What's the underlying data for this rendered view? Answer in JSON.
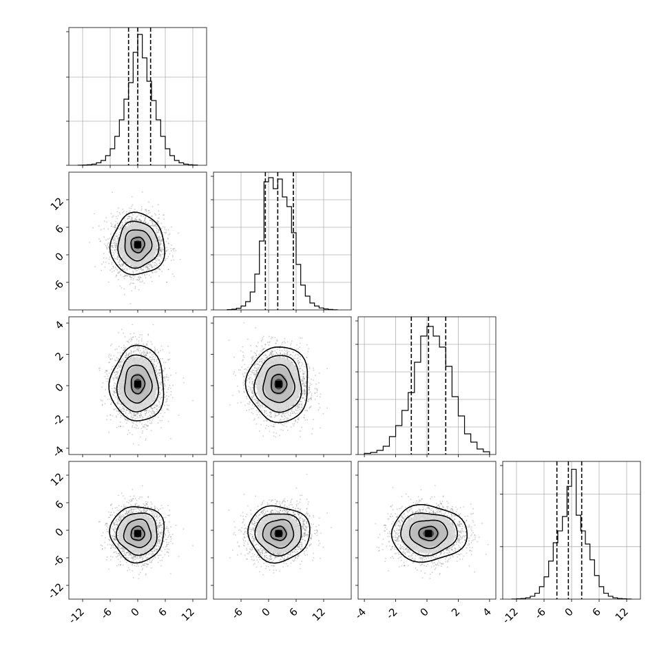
{
  "chart_data": {
    "type": "corner",
    "parameters": [
      {
        "name": "",
        "range": [
          -15,
          15
        ],
        "ticks": [
          -12,
          -6,
          0,
          6,
          12
        ],
        "quantiles": [
          -2.0,
          0.0,
          2.8
        ],
        "hist_bins": [
          -13,
          -12,
          -11,
          -10,
          -9,
          -8,
          -7,
          -6,
          -5,
          -4,
          -3,
          -2,
          -1,
          0,
          1,
          2,
          3,
          4,
          5,
          6,
          7,
          8,
          9,
          10,
          11,
          12,
          13
        ],
        "hist_counts": [
          1,
          2,
          4,
          8,
          18,
          35,
          70,
          120,
          210,
          330,
          480,
          600,
          820,
          950,
          780,
          610,
          470,
          330,
          210,
          120,
          70,
          35,
          18,
          8,
          4,
          2
        ],
        "hist_ymax": 1000,
        "hist_ticks": [
          320,
          640
        ],
        "mean": 0.0,
        "sd": 2.8
      },
      {
        "name": "",
        "range": [
          -12,
          18
        ],
        "ticks": [
          -6,
          0,
          6,
          12
        ],
        "quantiles": [
          -0.7,
          2.0,
          5.4
        ],
        "hist_bins": [
          -9,
          -8,
          -7,
          -6,
          -5,
          -4,
          -3,
          -2,
          -1,
          0,
          1,
          2,
          3,
          4,
          5,
          6,
          7,
          8,
          9,
          10,
          11,
          12,
          13,
          14,
          15
        ],
        "hist_counts": [
          2,
          5,
          12,
          28,
          60,
          130,
          260,
          500,
          930,
          960,
          880,
          950,
          820,
          750,
          560,
          330,
          180,
          100,
          50,
          28,
          14,
          7,
          3,
          1
        ],
        "hist_ymax": 1000,
        "hist_ticks": [
          200,
          400,
          600,
          800
        ],
        "mean": 2.2,
        "sd": 3.2
      },
      {
        "name": "",
        "range": [
          -4.4,
          4.4
        ],
        "ticks": [
          -4,
          -2,
          0,
          2,
          4
        ],
        "quantiles": [
          -1.0,
          0.1,
          1.2
        ],
        "hist_bins": [
          -4.0,
          -3.6,
          -3.2,
          -2.8,
          -2.4,
          -2.0,
          -1.6,
          -1.2,
          -0.8,
          -0.4,
          0.0,
          0.4,
          0.8,
          1.2,
          1.6,
          2.0,
          2.4,
          2.8,
          3.2,
          3.6,
          4.0
        ],
        "hist_counts": [
          8,
          15,
          30,
          60,
          130,
          210,
          320,
          450,
          670,
          860,
          930,
          860,
          780,
          640,
          420,
          280,
          150,
          90,
          40,
          20
        ],
        "hist_ymax": 1000,
        "hist_ticks": [
          200,
          400,
          600,
          800
        ],
        "mean": 0.1,
        "sd": 1.15
      },
      {
        "name": "",
        "range": [
          -15,
          15
        ],
        "ticks": [
          -12,
          -6,
          0,
          6,
          12
        ],
        "quantiles": [
          -3.2,
          -0.7,
          2.2
        ],
        "hist_bins": [
          -13,
          -12,
          -11,
          -10,
          -9,
          -8,
          -7,
          -6,
          -5,
          -4,
          -3,
          -2,
          -1,
          0,
          1,
          2,
          3,
          4,
          5,
          6,
          7,
          8,
          9,
          10,
          11,
          12,
          13
        ],
        "hist_counts": [
          1,
          3,
          5,
          10,
          22,
          45,
          95,
          170,
          290,
          430,
          520,
          630,
          860,
          990,
          640,
          520,
          420,
          300,
          180,
          95,
          45,
          22,
          10,
          5,
          3,
          1
        ],
        "hist_ymax": 1050,
        "hist_ticks": [
          400,
          800
        ],
        "mean": -0.7,
        "sd": 2.9
      }
    ],
    "pairs": [
      {
        "row": 1,
        "col": 0,
        "center": [
          0,
          2.2
        ],
        "rho": 0.0
      },
      {
        "row": 2,
        "col": 0,
        "center": [
          0,
          0.1
        ],
        "rho": 0.0
      },
      {
        "row": 2,
        "col": 1,
        "center": [
          2.2,
          0.1
        ],
        "rho": -0.1
      },
      {
        "row": 3,
        "col": 0,
        "center": [
          0,
          -0.7
        ],
        "rho": 0.0
      },
      {
        "row": 3,
        "col": 1,
        "center": [
          2.2,
          -0.7
        ],
        "rho": 0.1
      },
      {
        "row": 3,
        "col": 2,
        "center": [
          0.1,
          -0.7
        ],
        "rho": 0.05
      }
    ],
    "contour_levels_sigma": [
      0.5,
      1.0,
      1.5,
      2.0
    ],
    "grid": true,
    "samples_per_panel": 2500
  }
}
